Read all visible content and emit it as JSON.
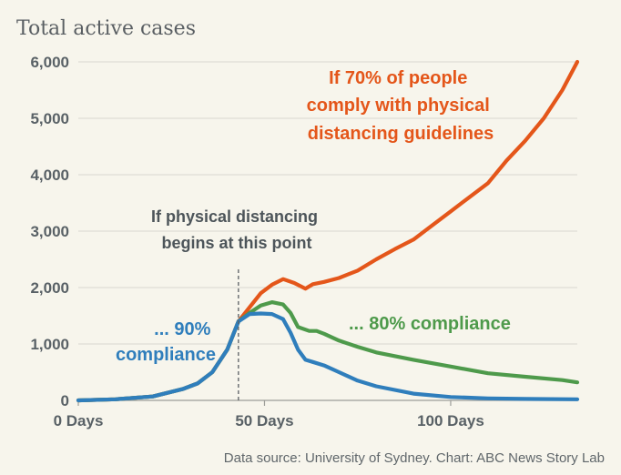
{
  "chart_data": {
    "type": "line",
    "title": "Total active cases",
    "xlim": [
      0,
      134
    ],
    "ylim": [
      0,
      6000
    ],
    "yticks": [
      0,
      1000,
      2000,
      3000,
      4000,
      5000,
      6000
    ],
    "ytick_labels": [
      "0",
      "1,000",
      "2,000",
      "3,000",
      "4,000",
      "5,000",
      "6,000"
    ],
    "xticks": [
      0,
      50,
      100
    ],
    "xtick_labels": [
      "0 Days",
      "50 Days",
      "100 Days"
    ],
    "grid": true,
    "distancing_start_day": 43,
    "series": [
      {
        "name": "If 70% of people comply with physical distancing guidelines",
        "color": "#e4561a",
        "x": [
          0,
          10,
          20,
          28,
          32,
          36,
          40,
          43,
          46,
          49,
          52,
          55,
          58,
          61,
          63,
          66,
          70,
          75,
          80,
          85,
          90,
          95,
          100,
          105,
          110,
          115,
          120,
          125,
          130,
          134
        ],
        "y": [
          0,
          20,
          70,
          200,
          300,
          500,
          900,
          1400,
          1650,
          1900,
          2050,
          2150,
          2080,
          1980,
          2060,
          2100,
          2170,
          2300,
          2500,
          2680,
          2850,
          3100,
          3350,
          3600,
          3850,
          4250,
          4600,
          5000,
          5500,
          6000
        ]
      },
      {
        "name": "... 80% compliance",
        "color": "#4e9a4b",
        "x": [
          0,
          10,
          20,
          28,
          32,
          36,
          40,
          43,
          46,
          49,
          52,
          55,
          57,
          59,
          62,
          64,
          66,
          70,
          75,
          80,
          90,
          100,
          110,
          120,
          130,
          134
        ],
        "y": [
          0,
          20,
          70,
          200,
          300,
          500,
          900,
          1400,
          1550,
          1680,
          1740,
          1700,
          1550,
          1300,
          1230,
          1230,
          1180,
          1060,
          950,
          850,
          720,
          600,
          480,
          420,
          360,
          320
        ]
      },
      {
        "name": "... 90% compliance",
        "color": "#2f7ebc",
        "x": [
          0,
          10,
          20,
          28,
          32,
          36,
          40,
          43,
          46,
          49,
          52,
          55,
          57,
          59,
          61,
          63,
          66,
          70,
          75,
          80,
          90,
          100,
          110,
          120,
          134
        ],
        "y": [
          0,
          20,
          70,
          200,
          300,
          500,
          900,
          1400,
          1530,
          1540,
          1530,
          1440,
          1200,
          900,
          720,
          680,
          620,
          500,
          350,
          250,
          120,
          60,
          35,
          25,
          20
        ]
      }
    ],
    "annotations": {
      "orange_label": [
        "If 70% of people",
        "comply with physical",
        "distancing guidelines"
      ],
      "green_label": "... 80% compliance",
      "blue_label": [
        "... 90%",
        "compliance"
      ],
      "distancing_label": [
        "If physical distancing",
        "begins at this point"
      ]
    },
    "source": "Data source: University of Sydney. Chart: ABC News Story Lab"
  }
}
